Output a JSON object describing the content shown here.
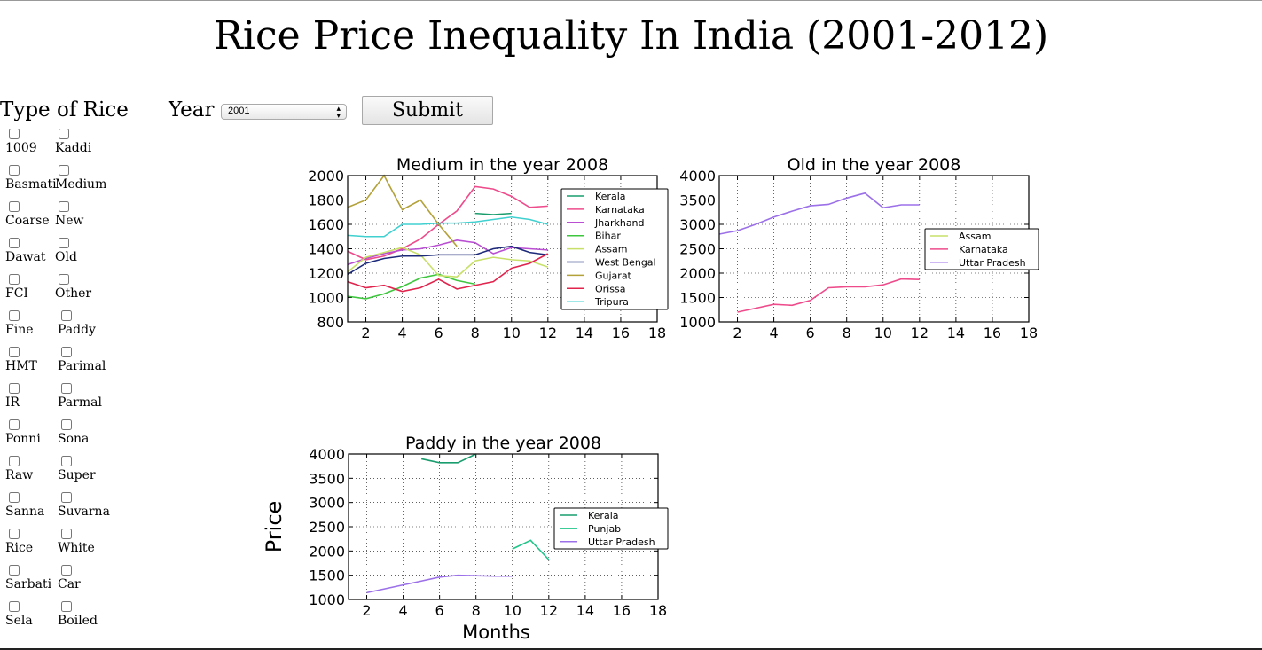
{
  "page": {
    "title": "Rice Price Inequality In India (2001-2012)",
    "type_label": "Type of Rice",
    "year_label": "Year",
    "year_value": "2001",
    "submit_label": "Submit"
  },
  "rice_types": [
    [
      "1009",
      "Kaddi"
    ],
    [
      "Basmati",
      "Medium"
    ],
    [
      "Coarse",
      "New"
    ],
    [
      "Dawat",
      "Old"
    ],
    [
      "FCI",
      "Other"
    ],
    [
      "Fine",
      "Paddy"
    ],
    [
      "HMT",
      "Parimal"
    ],
    [
      "IR",
      "Parmal"
    ],
    [
      "Ponni",
      "Sona"
    ],
    [
      "Raw",
      "Super"
    ],
    [
      "Sanna",
      "Suvarna"
    ],
    [
      "Rice",
      "White"
    ],
    [
      "Sarbati",
      "Car"
    ],
    [
      "Sela",
      "Boiled"
    ]
  ],
  "chart_data": [
    {
      "type": "line",
      "title": "Medium in the year 2008",
      "xlabel": "",
      "ylabel": "",
      "xlim": [
        1,
        18
      ],
      "ylim": [
        800,
        2000
      ],
      "xticks": [
        2,
        4,
        6,
        8,
        10,
        12,
        14,
        16,
        18
      ],
      "yticks": [
        800,
        1000,
        1200,
        1400,
        1600,
        1800,
        2000
      ],
      "grid": true,
      "legend": "right",
      "series": [
        {
          "name": "Kerala",
          "color": "#1a9d6e",
          "x": [
            8,
            9,
            10
          ],
          "y": [
            1690,
            1680,
            1690
          ]
        },
        {
          "name": "Karnataka",
          "color": "#ee4b8b",
          "x": [
            1,
            2,
            3,
            4,
            5,
            6,
            7,
            8,
            9,
            10,
            11,
            12
          ],
          "y": [
            1380,
            1310,
            1340,
            1400,
            1480,
            1600,
            1710,
            1910,
            1890,
            1830,
            1740,
            1750
          ]
        },
        {
          "name": "Jharkhand",
          "color": "#b94ed2",
          "x": [
            1,
            2,
            3,
            4,
            5,
            6,
            7,
            8,
            9,
            10,
            11,
            12
          ],
          "y": [
            1270,
            1320,
            1360,
            1390,
            1400,
            1430,
            1470,
            1450,
            1360,
            1410,
            1400,
            1390
          ]
        },
        {
          "name": "Bihar",
          "color": "#3fc63f",
          "x": [
            1,
            2,
            3,
            4,
            5,
            6,
            7,
            8
          ],
          "y": [
            1010,
            990,
            1030,
            1090,
            1160,
            1190,
            1140,
            1110
          ]
        },
        {
          "name": "Assam",
          "color": "#c8e06a",
          "x": [
            1,
            2,
            3,
            4,
            5,
            6,
            7,
            8,
            9,
            10,
            11,
            12
          ],
          "y": [
            1210,
            1330,
            1370,
            1410,
            1350,
            1180,
            1170,
            1300,
            1330,
            1310,
            1300,
            1250
          ]
        },
        {
          "name": "West Bengal",
          "color": "#1d2a7a",
          "x": [
            1,
            2,
            3,
            4,
            5,
            6,
            7,
            8,
            9,
            10,
            11,
            12
          ],
          "y": [
            1190,
            1280,
            1320,
            1340,
            1340,
            1350,
            1350,
            1350,
            1400,
            1420,
            1370,
            1350
          ]
        },
        {
          "name": "Gujarat",
          "color": "#b3a13a",
          "x": [
            1,
            2,
            3,
            4,
            5,
            6,
            7
          ],
          "y": [
            1740,
            1800,
            2000,
            1720,
            1800,
            1600,
            1420
          ]
        },
        {
          "name": "Orissa",
          "color": "#e0244d",
          "x": [
            1,
            2,
            3,
            4,
            5,
            6,
            7,
            8,
            9,
            10,
            11,
            12
          ],
          "y": [
            1130,
            1080,
            1100,
            1050,
            1080,
            1150,
            1070,
            1100,
            1130,
            1240,
            1280,
            1360
          ]
        },
        {
          "name": "Tripura",
          "color": "#40d0d0",
          "x": [
            1,
            2,
            3,
            4,
            5,
            6,
            7,
            8,
            9,
            10,
            11,
            12
          ],
          "y": [
            1510,
            1500,
            1500,
            1600,
            1600,
            1610,
            1610,
            1620,
            1640,
            1660,
            1640,
            1600
          ]
        }
      ]
    },
    {
      "type": "line",
      "title": "Old in the year 2008",
      "xlabel": "",
      "ylabel": "",
      "xlim": [
        1,
        18
      ],
      "ylim": [
        1000,
        4000
      ],
      "xticks": [
        2,
        4,
        6,
        8,
        10,
        12,
        14,
        16,
        18
      ],
      "yticks": [
        1000,
        1500,
        2000,
        2500,
        3000,
        3500,
        4000
      ],
      "grid": true,
      "legend": "right",
      "series": [
        {
          "name": "Assam",
          "color": "#c8e06a",
          "x": [],
          "y": []
        },
        {
          "name": "Karnataka",
          "color": "#ee4b8b",
          "x": [
            2,
            3,
            4,
            5,
            6,
            7,
            8,
            9,
            10,
            11,
            12
          ],
          "y": [
            1200,
            1280,
            1360,
            1340,
            1440,
            1700,
            1720,
            1720,
            1760,
            1880,
            1870
          ]
        },
        {
          "name": "Uttar Pradesh",
          "color": "#9b70e8",
          "x": [
            1,
            2,
            3,
            4,
            5,
            6,
            7,
            8,
            9,
            10,
            11,
            12
          ],
          "y": [
            2800,
            2870,
            3000,
            3150,
            3270,
            3380,
            3410,
            3540,
            3640,
            3340,
            3400,
            3400
          ]
        }
      ]
    },
    {
      "type": "line",
      "title": "Paddy in the year 2008",
      "xlabel": "Months",
      "ylabel": "Price",
      "xlim": [
        1,
        18
      ],
      "ylim": [
        1000,
        4000
      ],
      "xticks": [
        2,
        4,
        6,
        8,
        10,
        12,
        14,
        16,
        18
      ],
      "yticks": [
        1000,
        1500,
        2000,
        2500,
        3000,
        3500,
        4000
      ],
      "grid": true,
      "legend": "right",
      "series": [
        {
          "name": "Kerala",
          "color": "#1a9d6e",
          "x": [
            5,
            6,
            7,
            8
          ],
          "y": [
            3900,
            3820,
            3820,
            4000
          ]
        },
        {
          "name": "Punjab",
          "color": "#20c48a",
          "x": [
            10,
            11,
            12
          ],
          "y": [
            2040,
            2220,
            1820
          ]
        },
        {
          "name": "Uttar Pradesh",
          "color": "#9b70e8",
          "x": [
            2,
            3,
            4,
            5,
            6,
            7,
            8,
            9,
            10
          ],
          "y": [
            1140,
            1220,
            1300,
            1380,
            1460,
            1500,
            1490,
            1480,
            1480
          ]
        }
      ]
    }
  ]
}
